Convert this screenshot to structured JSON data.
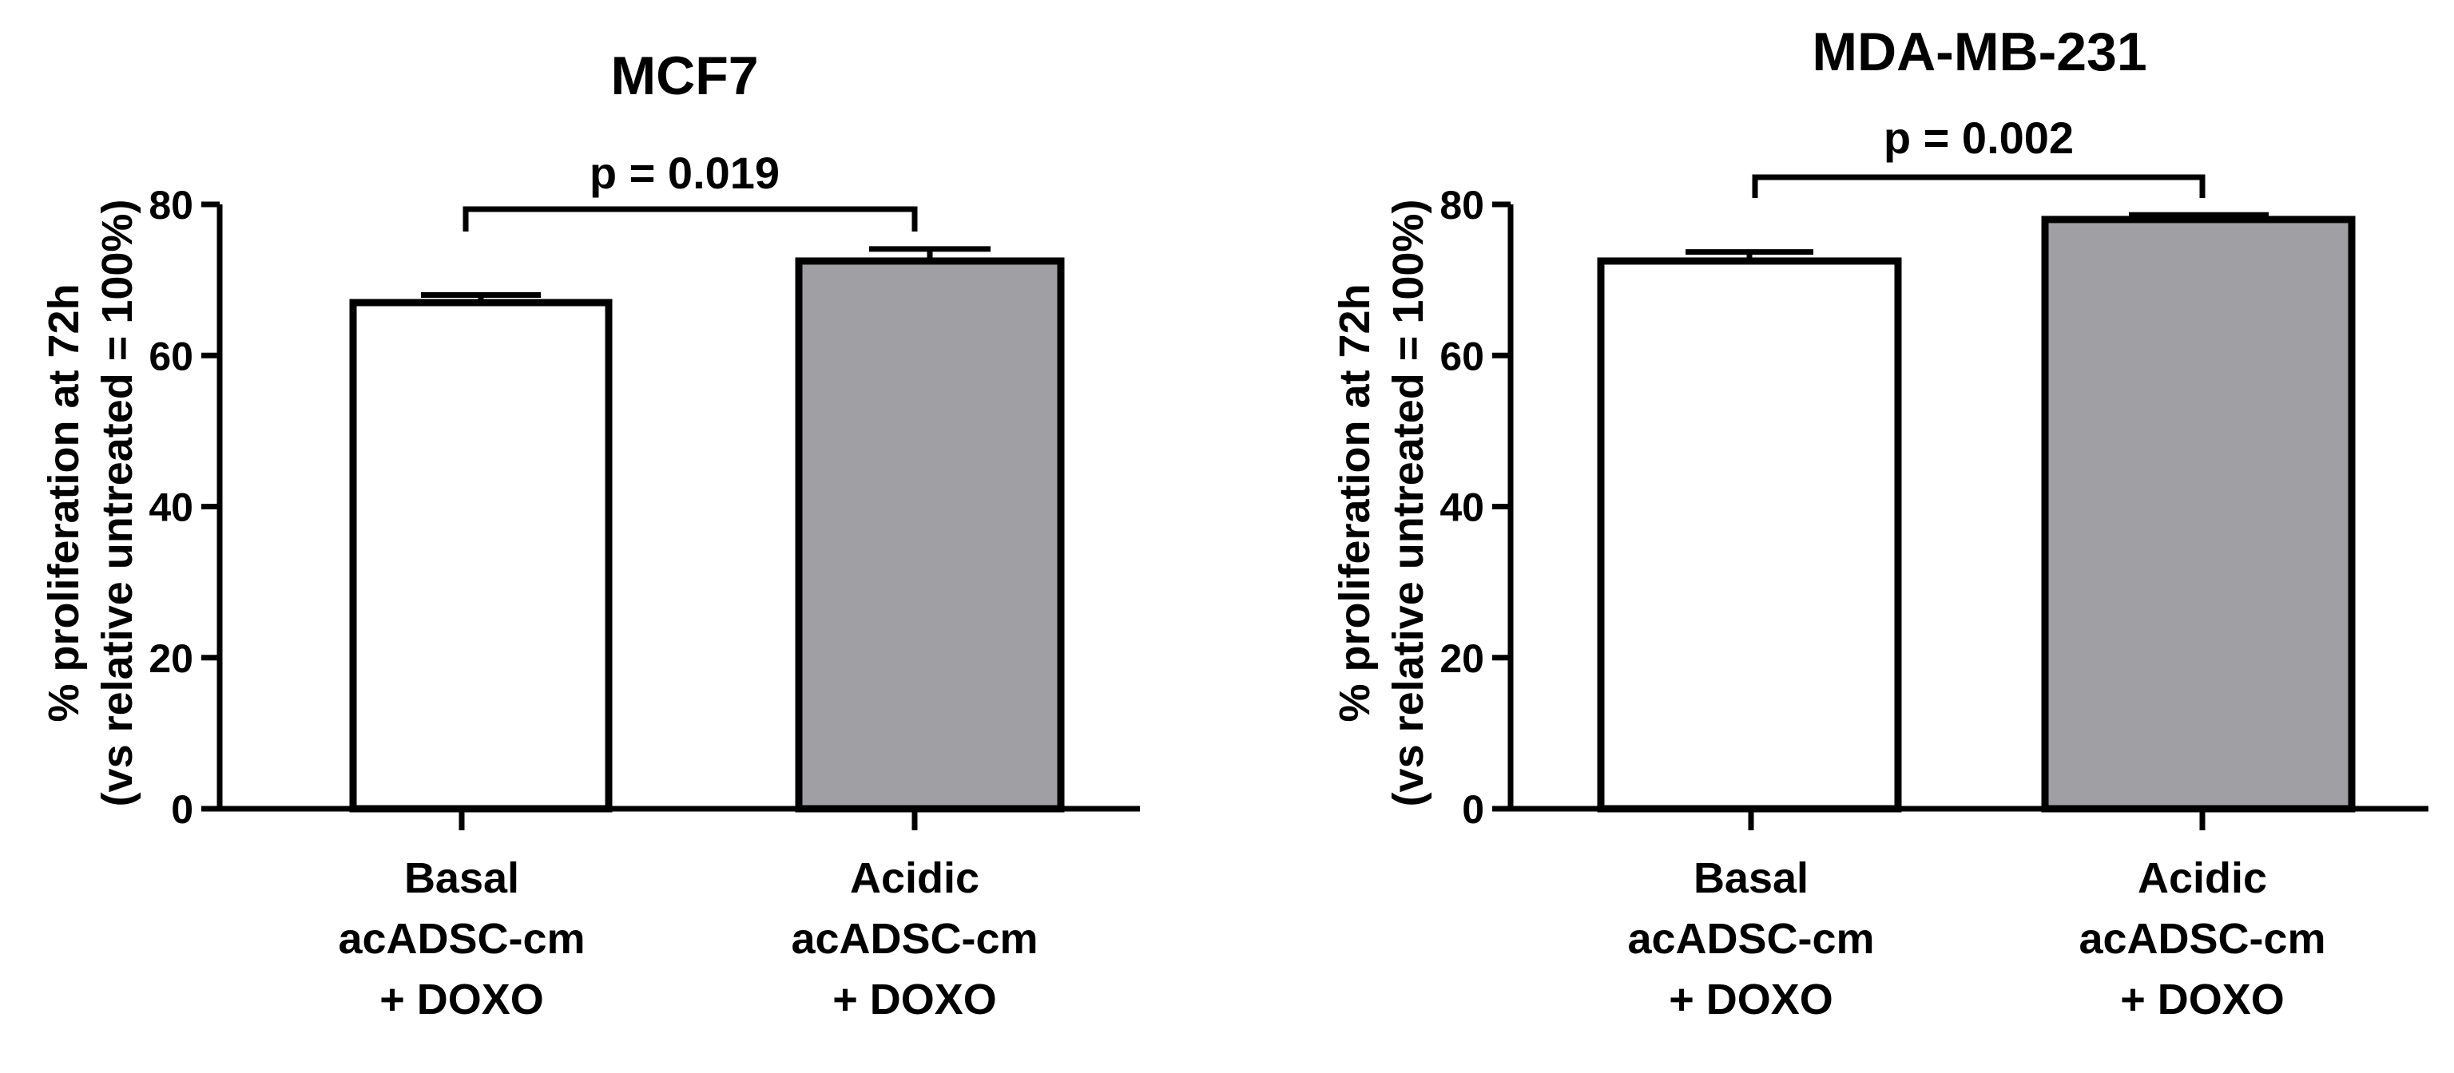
{
  "chart_data": [
    {
      "type": "bar",
      "title": "MCF7",
      "ylabel_lines": [
        "% proliferation at 72h",
        "(vs relative untreated = 100%)"
      ],
      "xlabel": "",
      "ylim": [
        0,
        80
      ],
      "yticks": [
        "0",
        "20",
        "40",
        "60",
        "80"
      ],
      "categories": [
        [
          "Basal",
          "acADSC-cm",
          "+ DOXO"
        ],
        [
          "Acidic",
          "acADSC-cm",
          "+ DOXO"
        ]
      ],
      "values": [
        67,
        72.5
      ],
      "errors": [
        1.0,
        1.6
      ],
      "bar_colors": [
        "#ffffff",
        "#a0a0a4"
      ],
      "annotation": "p = 0.019",
      "grid": false,
      "legend": "none"
    },
    {
      "type": "bar",
      "title": "MDA-MB-231",
      "ylabel_lines": [
        "% proliferation at 72h",
        "(vs relative untreated = 100%)"
      ],
      "xlabel": "",
      "ylim": [
        0,
        80
      ],
      "yticks": [
        "0",
        "20",
        "40",
        "60",
        "80"
      ],
      "categories": [
        [
          "Basal",
          "acADSC-cm",
          "+ DOXO"
        ],
        [
          "Acidic",
          "acADSC-cm",
          "+ DOXO"
        ]
      ],
      "values": [
        72.5,
        78
      ],
      "errors": [
        1.2,
        0.6
      ],
      "bar_colors": [
        "#ffffff",
        "#a0a0a4"
      ],
      "annotation": "p = 0.002",
      "grid": false,
      "legend": "none"
    }
  ]
}
